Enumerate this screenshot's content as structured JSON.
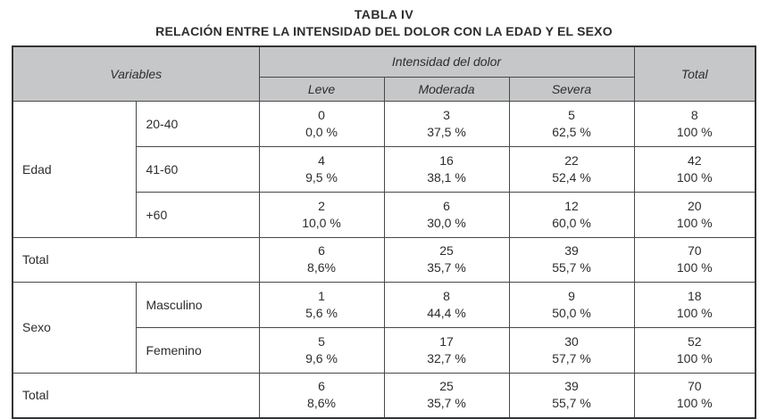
{
  "title": "TABLA IV",
  "subtitle": "RELACIÓN ENTRE LA INTENSIDAD DEL DOLOR CON LA EDAD Y EL SEXO",
  "colors": {
    "header_bg": "#c6c7c9",
    "border": "#47484a",
    "text": "#2d2d2f",
    "background": "#ffffff"
  },
  "table": {
    "header": {
      "variables": "Variables",
      "intensity_group": "Intensidad del dolor",
      "columns": [
        "Leve",
        "Moderada",
        "Severa"
      ],
      "total": "Total"
    },
    "groups": [
      {
        "label": "Edad",
        "rows": [
          {
            "category": "20-40",
            "cells": [
              [
                "0",
                "0,0 %"
              ],
              [
                "3",
                "37,5 %"
              ],
              [
                "5",
                "62,5 %"
              ],
              [
                "8",
                "100 %"
              ]
            ]
          },
          {
            "category": "41-60",
            "cells": [
              [
                "4",
                "9,5 %"
              ],
              [
                "16",
                "38,1 %"
              ],
              [
                "22",
                "52,4 %"
              ],
              [
                "42",
                "100 %"
              ]
            ]
          },
          {
            "category": "+60",
            "cells": [
              [
                "2",
                "10,0 %"
              ],
              [
                "6",
                "30,0 %"
              ],
              [
                "12",
                "60,0 %"
              ],
              [
                "20",
                "100 %"
              ]
            ]
          }
        ],
        "total": {
          "label": "Total",
          "cells": [
            [
              "6",
              "8,6%"
            ],
            [
              "25",
              "35,7 %"
            ],
            [
              "39",
              "55,7 %"
            ],
            [
              "70",
              "100 %"
            ]
          ]
        }
      },
      {
        "label": "Sexo",
        "rows": [
          {
            "category": "Masculino",
            "cells": [
              [
                "1",
                "5,6 %"
              ],
              [
                "8",
                "44,4 %"
              ],
              [
                "9",
                "50,0 %"
              ],
              [
                "18",
                "100 %"
              ]
            ]
          },
          {
            "category": "Femenino",
            "cells": [
              [
                "5",
                "9,6 %"
              ],
              [
                "17",
                "32,7 %"
              ],
              [
                "30",
                "57,7 %"
              ],
              [
                "52",
                "100 %"
              ]
            ]
          }
        ],
        "total": {
          "label": "Total",
          "cells": [
            [
              "6",
              "8,6%"
            ],
            [
              "25",
              "35,7 %"
            ],
            [
              "39",
              "55,7 %"
            ],
            [
              "70",
              "100 %"
            ]
          ]
        }
      }
    ]
  }
}
